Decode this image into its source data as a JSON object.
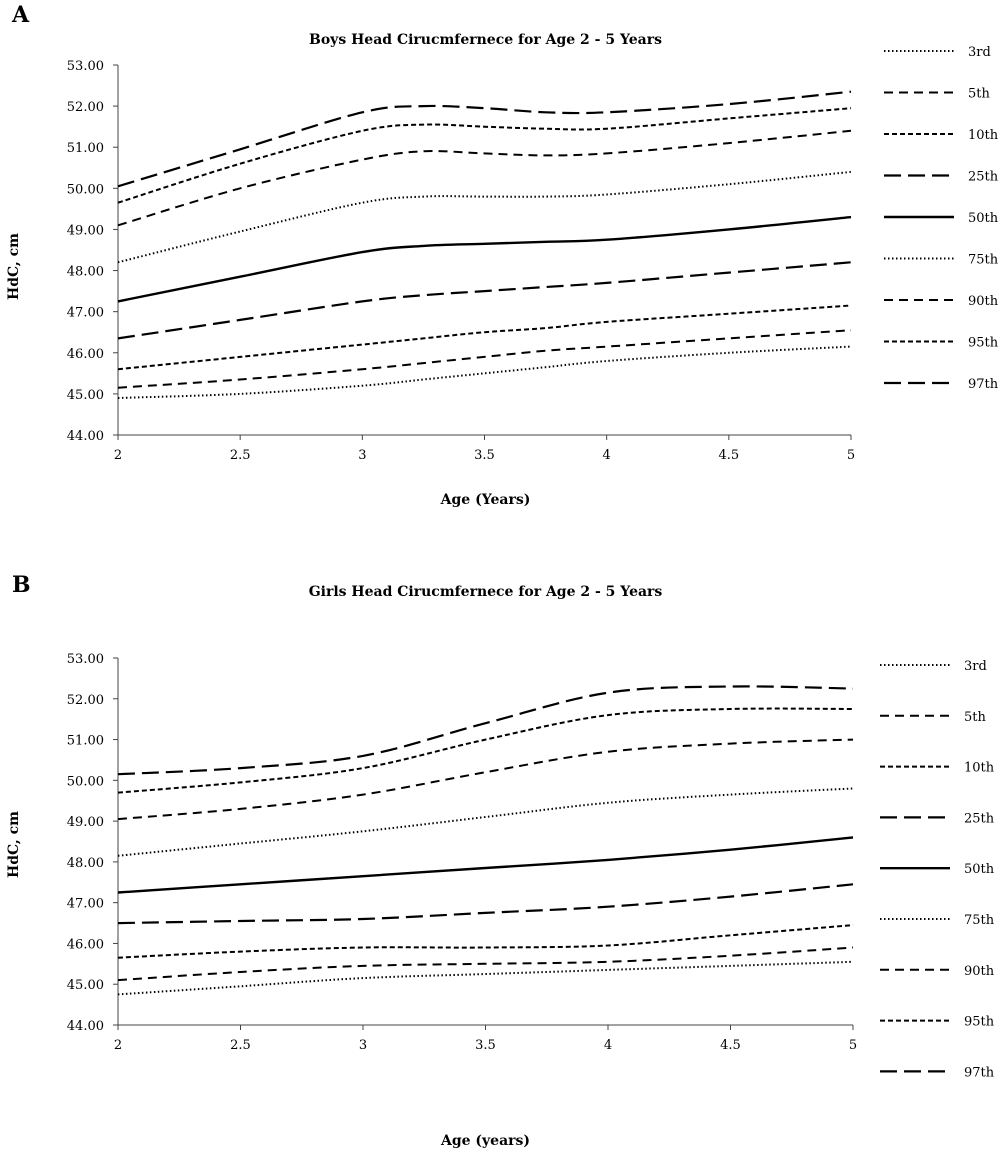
{
  "chart_data": [
    {
      "panel_letter": "A",
      "type": "line",
      "title": "Boys Head Cirucmfernece for Age 2 - 5 Years",
      "xlabel": "Age (Years)",
      "ylabel": "HdC, cm",
      "xlim": [
        2,
        5
      ],
      "ylim": [
        44,
        53
      ],
      "x_ticks": [
        "2",
        "2.5",
        "3",
        "3.5",
        "4",
        "4.5",
        "5"
      ],
      "y_ticks": [
        "44.00",
        "45.00",
        "46.00",
        "47.00",
        "48.00",
        "49.00",
        "50.00",
        "51.00",
        "52.00",
        "53.00"
      ],
      "grid": false,
      "legend_position": "right",
      "x": [
        2,
        2.5,
        3,
        3.25,
        3.5,
        3.75,
        4,
        4.5,
        5
      ],
      "series": [
        {
          "name": "3rd",
          "dash": "dotted",
          "values": [
            44.9,
            45.0,
            45.2,
            45.35,
            45.5,
            45.65,
            45.8,
            46.0,
            46.15
          ]
        },
        {
          "name": "5th",
          "dash": "dashed",
          "values": [
            45.15,
            45.35,
            45.6,
            45.75,
            45.9,
            46.05,
            46.15,
            46.35,
            46.55
          ]
        },
        {
          "name": "10th",
          "dash": "short-dashed",
          "values": [
            45.6,
            45.9,
            46.2,
            46.35,
            46.5,
            46.6,
            46.75,
            46.95,
            47.15
          ]
        },
        {
          "name": "25th",
          "dash": "long-dashed",
          "values": [
            46.35,
            46.8,
            47.25,
            47.4,
            47.5,
            47.6,
            47.7,
            47.95,
            48.2
          ]
        },
        {
          "name": "50th",
          "dash": "solid",
          "values": [
            47.25,
            47.85,
            48.45,
            48.6,
            48.65,
            48.7,
            48.75,
            49.0,
            49.3
          ]
        },
        {
          "name": "75th",
          "dash": "dotted",
          "values": [
            48.2,
            48.95,
            49.65,
            49.8,
            49.8,
            49.8,
            49.85,
            50.1,
            50.4
          ]
        },
        {
          "name": "90th",
          "dash": "dashed",
          "values": [
            49.1,
            50.0,
            50.7,
            50.9,
            50.85,
            50.8,
            50.85,
            51.1,
            51.4
          ]
        },
        {
          "name": "95th",
          "dash": "short-dashed",
          "values": [
            49.65,
            50.6,
            51.4,
            51.55,
            51.5,
            51.45,
            51.45,
            51.7,
            51.95
          ]
        },
        {
          "name": "97th",
          "dash": "long-dashed",
          "values": [
            50.05,
            50.95,
            51.85,
            52.0,
            51.95,
            51.85,
            51.85,
            52.05,
            52.35
          ]
        }
      ]
    },
    {
      "panel_letter": "B",
      "type": "line",
      "title": "Girls Head Cirucmfernece for Age 2 - 5 Years",
      "xlabel": "Age (years)",
      "ylabel": "HdC, cm",
      "xlim": [
        2,
        5
      ],
      "ylim": [
        44,
        53
      ],
      "x_ticks": [
        "2",
        "2.5",
        "3",
        "3.5",
        "4",
        "4.5",
        "5"
      ],
      "y_ticks": [
        "44.00",
        "45.00",
        "46.00",
        "47.00",
        "48.00",
        "49.00",
        "50.00",
        "51.00",
        "52.00",
        "53.00"
      ],
      "grid": false,
      "legend_position": "right",
      "x": [
        2,
        2.5,
        3,
        3.5,
        4,
        4.5,
        5
      ],
      "series": [
        {
          "name": "3rd",
          "dash": "dotted",
          "values": [
            44.75,
            44.95,
            45.15,
            45.25,
            45.35,
            45.45,
            45.55
          ]
        },
        {
          "name": "5th",
          "dash": "dashed",
          "values": [
            45.1,
            45.3,
            45.45,
            45.5,
            45.55,
            45.7,
            45.9
          ]
        },
        {
          "name": "10th",
          "dash": "short-dashed",
          "values": [
            45.65,
            45.8,
            45.9,
            45.9,
            45.95,
            46.2,
            46.45
          ]
        },
        {
          "name": "25th",
          "dash": "long-dashed",
          "values": [
            46.5,
            46.55,
            46.6,
            46.75,
            46.9,
            47.15,
            47.45
          ]
        },
        {
          "name": "50th",
          "dash": "solid",
          "values": [
            47.25,
            47.45,
            47.65,
            47.85,
            48.05,
            48.3,
            48.6
          ]
        },
        {
          "name": "75th",
          "dash": "dotted",
          "values": [
            48.15,
            48.45,
            48.75,
            49.1,
            49.45,
            49.65,
            49.8
          ]
        },
        {
          "name": "90th",
          "dash": "dashed",
          "values": [
            49.05,
            49.3,
            49.65,
            50.2,
            50.7,
            50.9,
            51.0
          ]
        },
        {
          "name": "95th",
          "dash": "short-dashed",
          "values": [
            49.7,
            49.95,
            50.3,
            51.0,
            51.6,
            51.75,
            51.75
          ]
        },
        {
          "name": "97th",
          "dash": "long-dashed",
          "values": [
            50.15,
            50.3,
            50.6,
            51.4,
            52.15,
            52.3,
            52.25
          ]
        }
      ]
    }
  ]
}
